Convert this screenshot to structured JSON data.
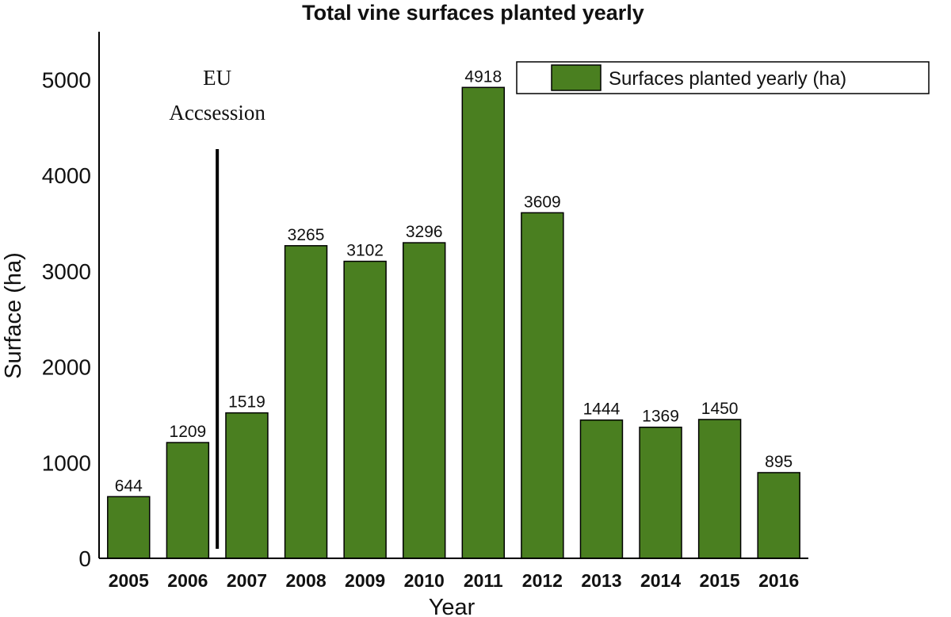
{
  "chart_data": {
    "type": "bar",
    "title": "Total vine surfaces planted yearly",
    "xlabel": "Year",
    "ylabel": "Surface (ha)",
    "categories": [
      "2005",
      "2006",
      "2007",
      "2008",
      "2009",
      "2010",
      "2011",
      "2012",
      "2013",
      "2014",
      "2015",
      "2016"
    ],
    "series": [
      {
        "name": "Surfaces planted yearly (ha)",
        "values": [
          644,
          1209,
          1519,
          3265,
          3102,
          3296,
          4918,
          3609,
          1444,
          1369,
          1450,
          895
        ],
        "color": "#4a7f20"
      }
    ],
    "ylim": [
      0,
      5500
    ],
    "yticks": [
      0,
      1000,
      2000,
      3000,
      4000,
      5000
    ],
    "legend_position": "top-right",
    "grid": false,
    "annotation": {
      "lines": [
        "EU",
        "Accsession"
      ],
      "between_categories": [
        "2006",
        "2007"
      ]
    }
  }
}
